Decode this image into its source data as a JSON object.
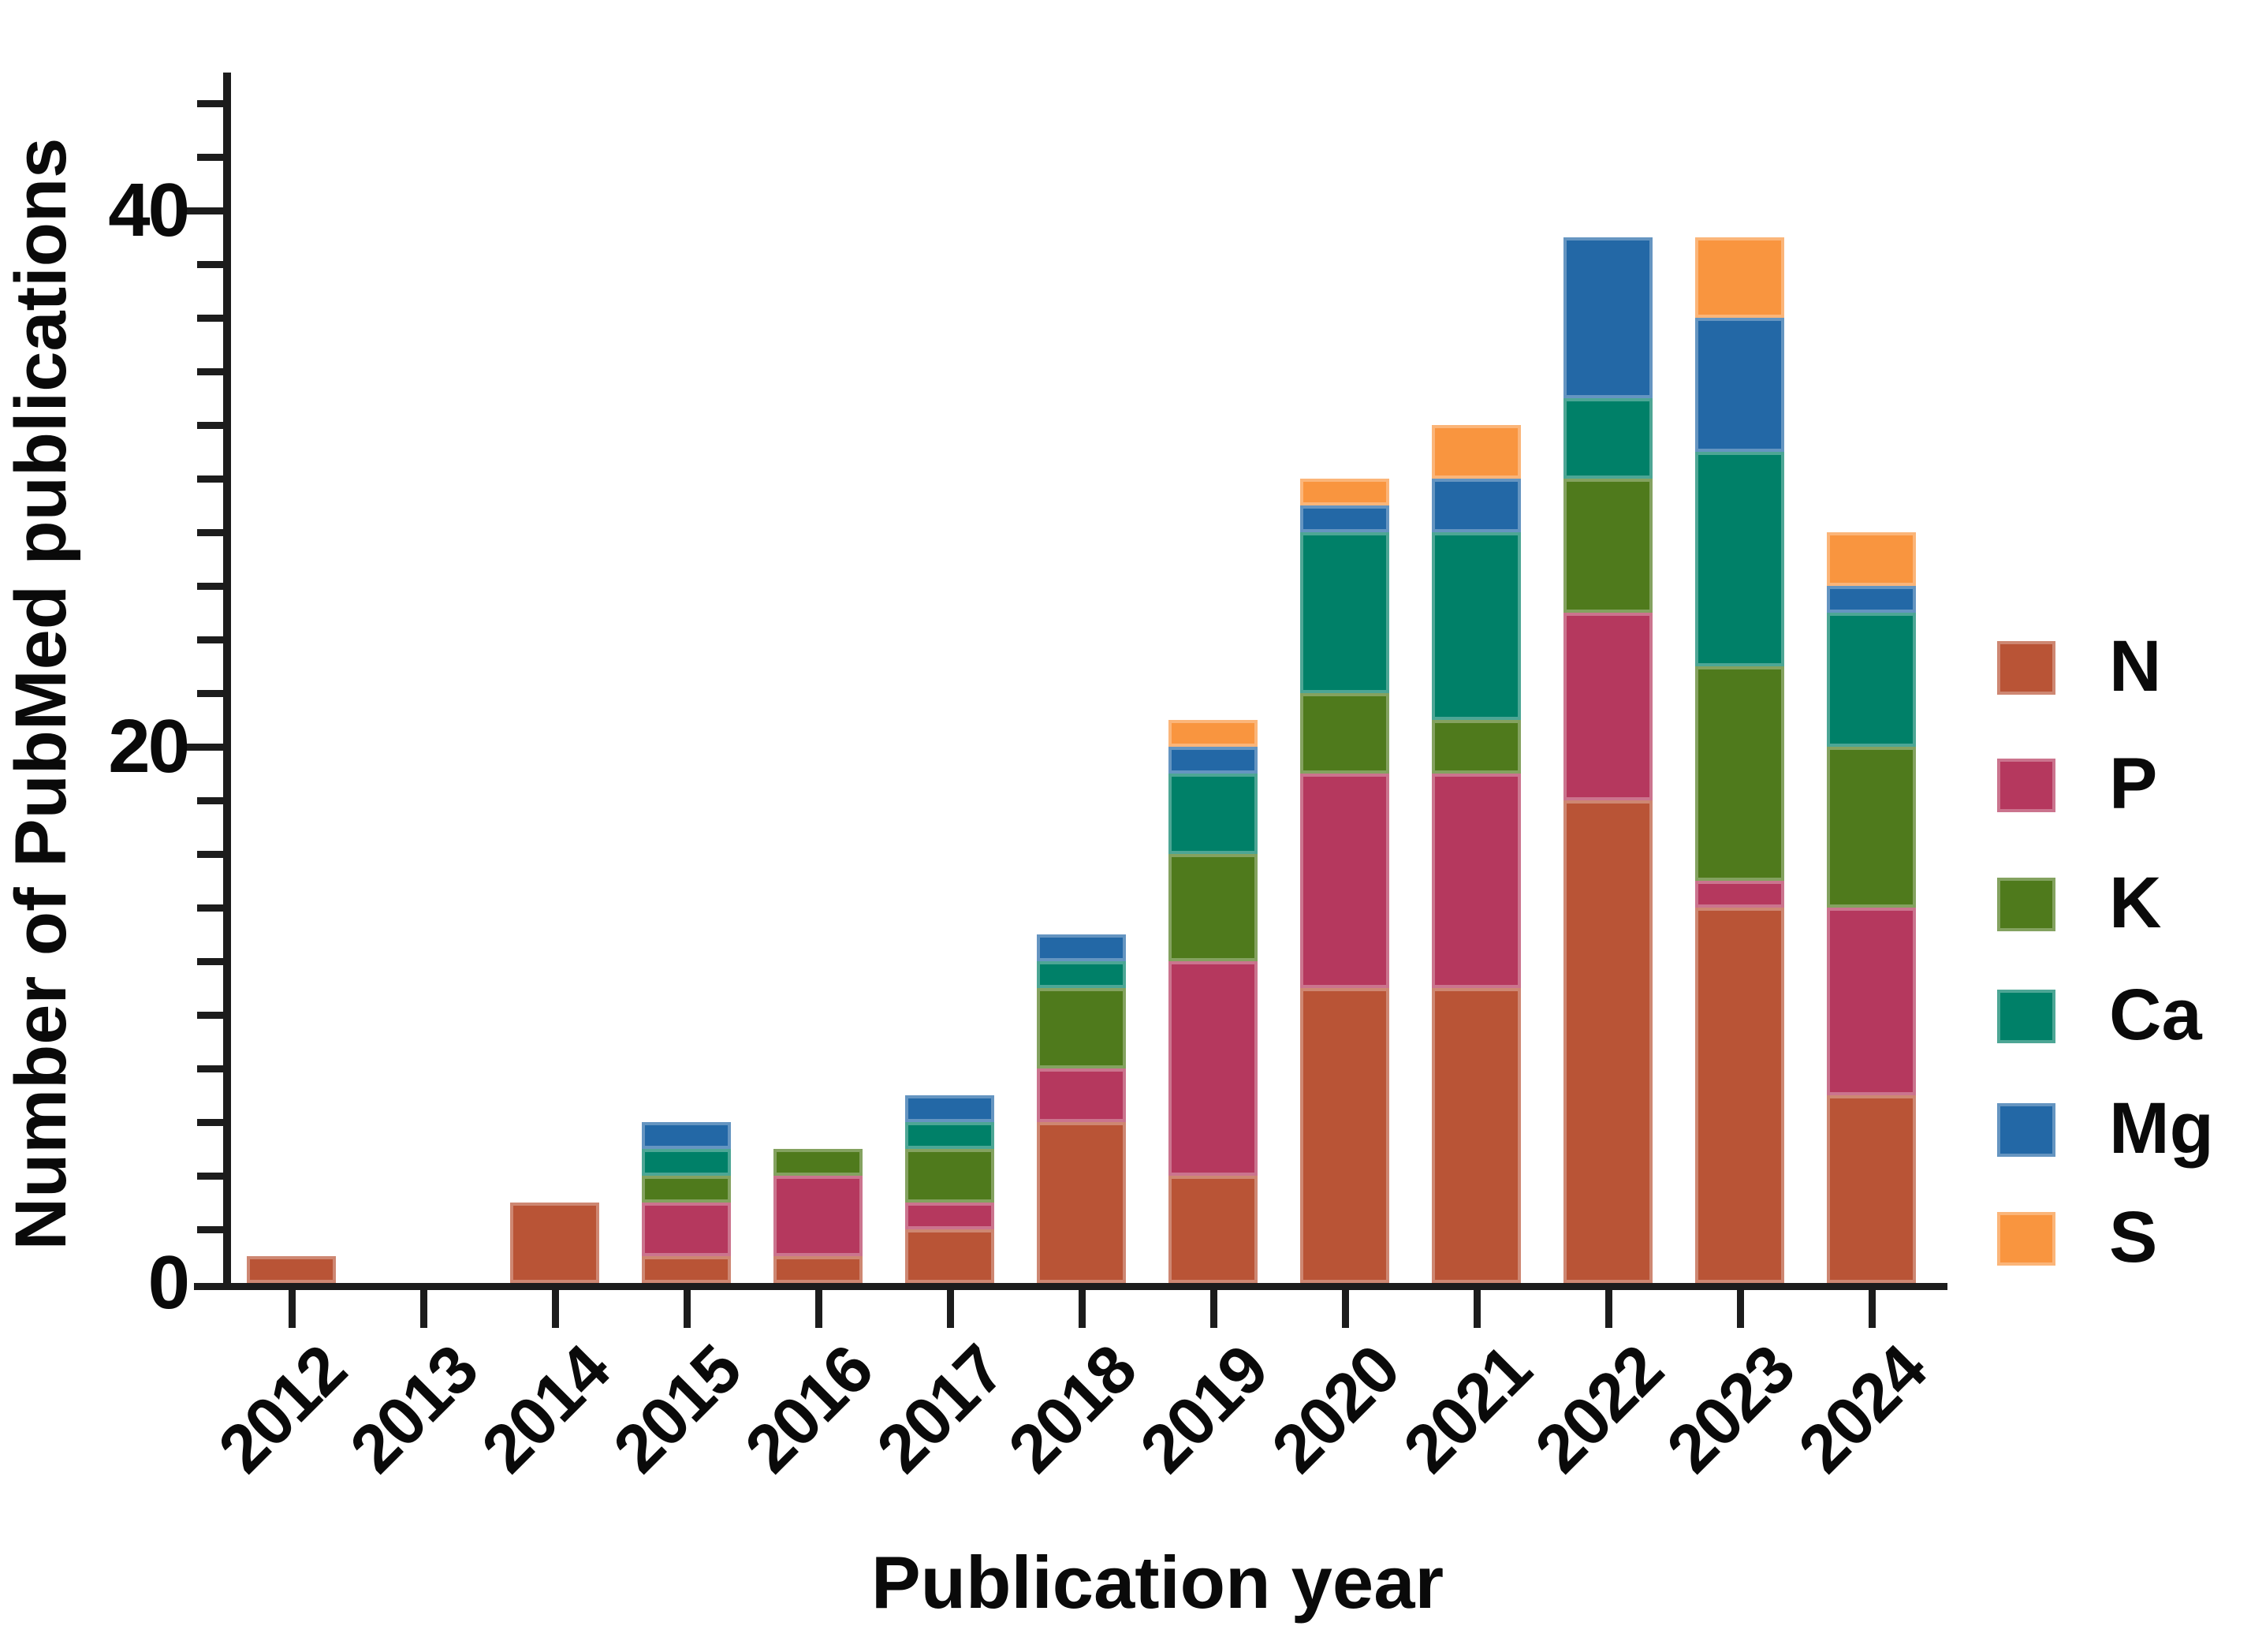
{
  "chart_data": {
    "type": "bar",
    "subtype": "stacked-vertical",
    "title": "",
    "xlabel": "Publication year",
    "ylabel": "Number of PubMed publications",
    "categories": [
      "2012",
      "2013",
      "2014",
      "2015",
      "2016",
      "2017",
      "2018",
      "2019",
      "2020",
      "2021",
      "2022",
      "2023",
      "2024"
    ],
    "series": [
      {
        "name": "N",
        "color": "#B95436",
        "values": [
          1,
          0,
          3,
          1,
          1,
          2,
          6,
          4,
          11,
          11,
          18,
          14,
          7
        ]
      },
      {
        "name": "P",
        "color": "#B5385E",
        "values": [
          0,
          0,
          0,
          2,
          3,
          1,
          2,
          8,
          8,
          8,
          7,
          1,
          7
        ]
      },
      {
        "name": "K",
        "color": "#4F7A1C",
        "values": [
          0,
          0,
          0,
          1,
          1,
          2,
          3,
          4,
          3,
          2,
          5,
          8,
          6
        ]
      },
      {
        "name": "Ca",
        "color": "#008068",
        "values": [
          0,
          0,
          0,
          1,
          0,
          1,
          1,
          3,
          6,
          7,
          3,
          8,
          5
        ]
      },
      {
        "name": "Mg",
        "color": "#2368A6",
        "values": [
          0,
          0,
          0,
          1,
          0,
          1,
          1,
          1,
          1,
          2,
          6,
          5,
          1
        ]
      },
      {
        "name": "S",
        "color": "#F9953F",
        "values": [
          0,
          0,
          0,
          0,
          0,
          0,
          0,
          1,
          1,
          2,
          0,
          3,
          2
        ]
      }
    ],
    "stack_totals": [
      1,
      0,
      3,
      6,
      5,
      7,
      13,
      21,
      30,
      32,
      39,
      39,
      28
    ],
    "y_axis": {
      "tick_labels": [
        "0",
        "20",
        "40"
      ],
      "tick_values": [
        0,
        20,
        40
      ],
      "minor_tick_step": 2,
      "ylim": [
        0,
        45
      ]
    },
    "legend": {
      "position": "right",
      "entries": [
        "N",
        "P",
        "K",
        "Ca",
        "Mg",
        "S"
      ]
    },
    "grid": "off"
  }
}
